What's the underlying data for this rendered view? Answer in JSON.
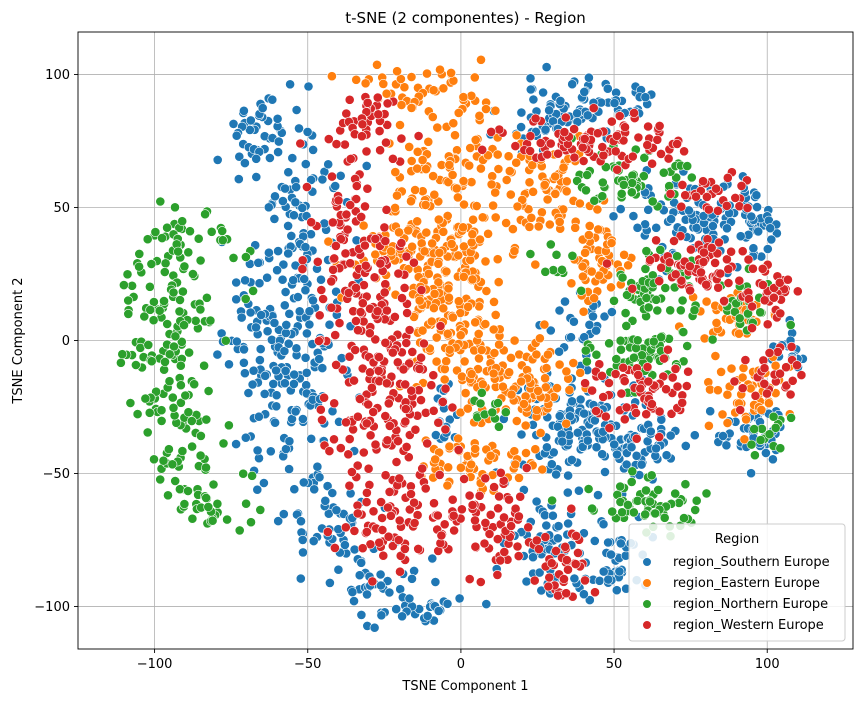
{
  "chart_data": {
    "type": "scatter",
    "title": "t-SNE (2 componentes) - Region",
    "xlabel": "TSNE Component 1",
    "ylabel": "TSNE Component 2",
    "xlim": [
      -125,
      128
    ],
    "ylim": [
      -116,
      116
    ],
    "xticks": [
      -100,
      -50,
      0,
      50,
      100
    ],
    "yticks": [
      -100,
      -50,
      0,
      50,
      100
    ],
    "grid": true,
    "legend": {
      "title": "Region",
      "placement": "lower-right"
    },
    "marker_edge_color": "#ffffff",
    "series": [
      {
        "name": "region_Southern Europe",
        "color": "#1f77b4",
        "clusters": [
          {
            "cx": -68,
            "cy": 80,
            "sx": 9,
            "sy": 8,
            "n": 55
          },
          {
            "cx": -52,
            "cy": 40,
            "sx": 8,
            "sy": 22,
            "n": 110
          },
          {
            "cx": -62,
            "cy": 5,
            "sx": 8,
            "sy": 15,
            "n": 80
          },
          {
            "cx": -55,
            "cy": -25,
            "sx": 9,
            "sy": 12,
            "n": 70
          },
          {
            "cx": -45,
            "cy": -65,
            "sx": 9,
            "sy": 10,
            "n": 55
          },
          {
            "cx": -30,
            "cy": -90,
            "sx": 9,
            "sy": 7,
            "n": 40
          },
          {
            "cx": -15,
            "cy": -102,
            "sx": 8,
            "sy": 3,
            "n": 25
          },
          {
            "cx": 32,
            "cy": 85,
            "sx": 10,
            "sy": 6,
            "n": 75
          },
          {
            "cx": 52,
            "cy": 90,
            "sx": 6,
            "sy": 4,
            "n": 25
          },
          {
            "cx": 80,
            "cy": 44,
            "sx": 13,
            "sy": 7,
            "n": 110
          },
          {
            "cx": 98,
            "cy": 46,
            "sx": 6,
            "sy": 6,
            "n": 40
          },
          {
            "cx": 40,
            "cy": -32,
            "sx": 12,
            "sy": 10,
            "n": 140
          },
          {
            "cx": 60,
            "cy": -40,
            "sx": 8,
            "sy": 6,
            "n": 45
          },
          {
            "cx": 27,
            "cy": -75,
            "sx": 6,
            "sy": 10,
            "n": 55
          },
          {
            "cx": 50,
            "cy": -82,
            "sx": 6,
            "sy": 9,
            "n": 50
          },
          {
            "cx": -5,
            "cy": -30,
            "sx": 3,
            "sy": 5,
            "n": 18
          },
          {
            "cx": 98,
            "cy": -36,
            "sx": 8,
            "sy": 6,
            "n": 50
          },
          {
            "cx": 108,
            "cy": -5,
            "sx": 4,
            "sy": 6,
            "n": 22
          },
          {
            "cx": 40,
            "cy": 5,
            "sx": 6,
            "sy": 5,
            "n": 25
          }
        ]
      },
      {
        "name": "region_Eastern Europe",
        "color": "#ff7f0e",
        "clusters": [
          {
            "cx": -12,
            "cy": 95,
            "sx": 10,
            "sy": 5,
            "n": 45
          },
          {
            "cx": -5,
            "cy": 65,
            "sx": 10,
            "sy": 12,
            "n": 80
          },
          {
            "cx": -18,
            "cy": 32,
            "sx": 10,
            "sy": 8,
            "n": 70
          },
          {
            "cx": -2,
            "cy": 30,
            "sx": 9,
            "sy": 12,
            "n": 90
          },
          {
            "cx": -5,
            "cy": 5,
            "sx": 9,
            "sy": 12,
            "n": 90
          },
          {
            "cx": 10,
            "cy": -15,
            "sx": 9,
            "sy": 8,
            "n": 60
          },
          {
            "cx": 25,
            "cy": -15,
            "sx": 7,
            "sy": 9,
            "n": 60
          },
          {
            "cx": 5,
            "cy": -45,
            "sx": 10,
            "sy": 6,
            "n": 60
          },
          {
            "cx": 27,
            "cy": 55,
            "sx": 8,
            "sy": 9,
            "n": 80
          },
          {
            "cx": 45,
            "cy": 30,
            "sx": 6,
            "sy": 8,
            "n": 55
          },
          {
            "cx": 90,
            "cy": 10,
            "sx": 6,
            "sy": 5,
            "n": 40
          },
          {
            "cx": 92,
            "cy": -20,
            "sx": 8,
            "sy": 6,
            "n": 50
          }
        ]
      },
      {
        "name": "region_Northern Europe",
        "color": "#2ca02c",
        "clusters": [
          {
            "cx": -95,
            "cy": 35,
            "sx": 10,
            "sy": 14,
            "n": 85
          },
          {
            "cx": -100,
            "cy": 0,
            "sx": 9,
            "sy": 13,
            "n": 75
          },
          {
            "cx": -95,
            "cy": -35,
            "sx": 9,
            "sy": 12,
            "n": 60
          },
          {
            "cx": -80,
            "cy": -65,
            "sx": 9,
            "sy": 8,
            "n": 45
          },
          {
            "cx": 55,
            "cy": 60,
            "sx": 8,
            "sy": 5,
            "n": 60
          },
          {
            "cx": 62,
            "cy": 20,
            "sx": 7,
            "sy": 6,
            "n": 55
          },
          {
            "cx": 60,
            "cy": -5,
            "sx": 8,
            "sy": 6,
            "n": 60
          },
          {
            "cx": 60,
            "cy": -62,
            "sx": 10,
            "sy": 5,
            "n": 60
          },
          {
            "cx": 105,
            "cy": -35,
            "sx": 6,
            "sy": 5,
            "n": 35
          },
          {
            "cx": 95,
            "cy": 15,
            "sx": 7,
            "sy": 5,
            "n": 30
          },
          {
            "cx": 8,
            "cy": -25,
            "sx": 3,
            "sy": 3,
            "n": 12
          },
          {
            "cx": 30,
            "cy": 30,
            "sx": 4,
            "sy": 5,
            "n": 10
          }
        ]
      },
      {
        "name": "region_Western Europe",
        "color": "#d62728",
        "clusters": [
          {
            "cx": -30,
            "cy": 78,
            "sx": 8,
            "sy": 10,
            "n": 45
          },
          {
            "cx": -38,
            "cy": 45,
            "sx": 5,
            "sy": 12,
            "n": 45
          },
          {
            "cx": -30,
            "cy": 10,
            "sx": 9,
            "sy": 15,
            "n": 110
          },
          {
            "cx": -25,
            "cy": -25,
            "sx": 9,
            "sy": 14,
            "n": 110
          },
          {
            "cx": -20,
            "cy": -65,
            "sx": 10,
            "sy": 10,
            "n": 80
          },
          {
            "cx": 45,
            "cy": 75,
            "sx": 14,
            "sy": 5,
            "n": 95
          },
          {
            "cx": 80,
            "cy": 28,
            "sx": 11,
            "sy": 5,
            "n": 75
          },
          {
            "cx": 80,
            "cy": 55,
            "sx": 7,
            "sy": 4,
            "n": 30
          },
          {
            "cx": 60,
            "cy": -20,
            "sx": 9,
            "sy": 7,
            "n": 65
          },
          {
            "cx": 10,
            "cy": -70,
            "sx": 8,
            "sy": 10,
            "n": 65
          },
          {
            "cx": 33,
            "cy": -85,
            "sx": 5,
            "sy": 9,
            "n": 40
          },
          {
            "cx": 100,
            "cy": 15,
            "sx": 6,
            "sy": 6,
            "n": 35
          },
          {
            "cx": 100,
            "cy": -15,
            "sx": 6,
            "sy": 6,
            "n": 30
          }
        ]
      }
    ]
  }
}
